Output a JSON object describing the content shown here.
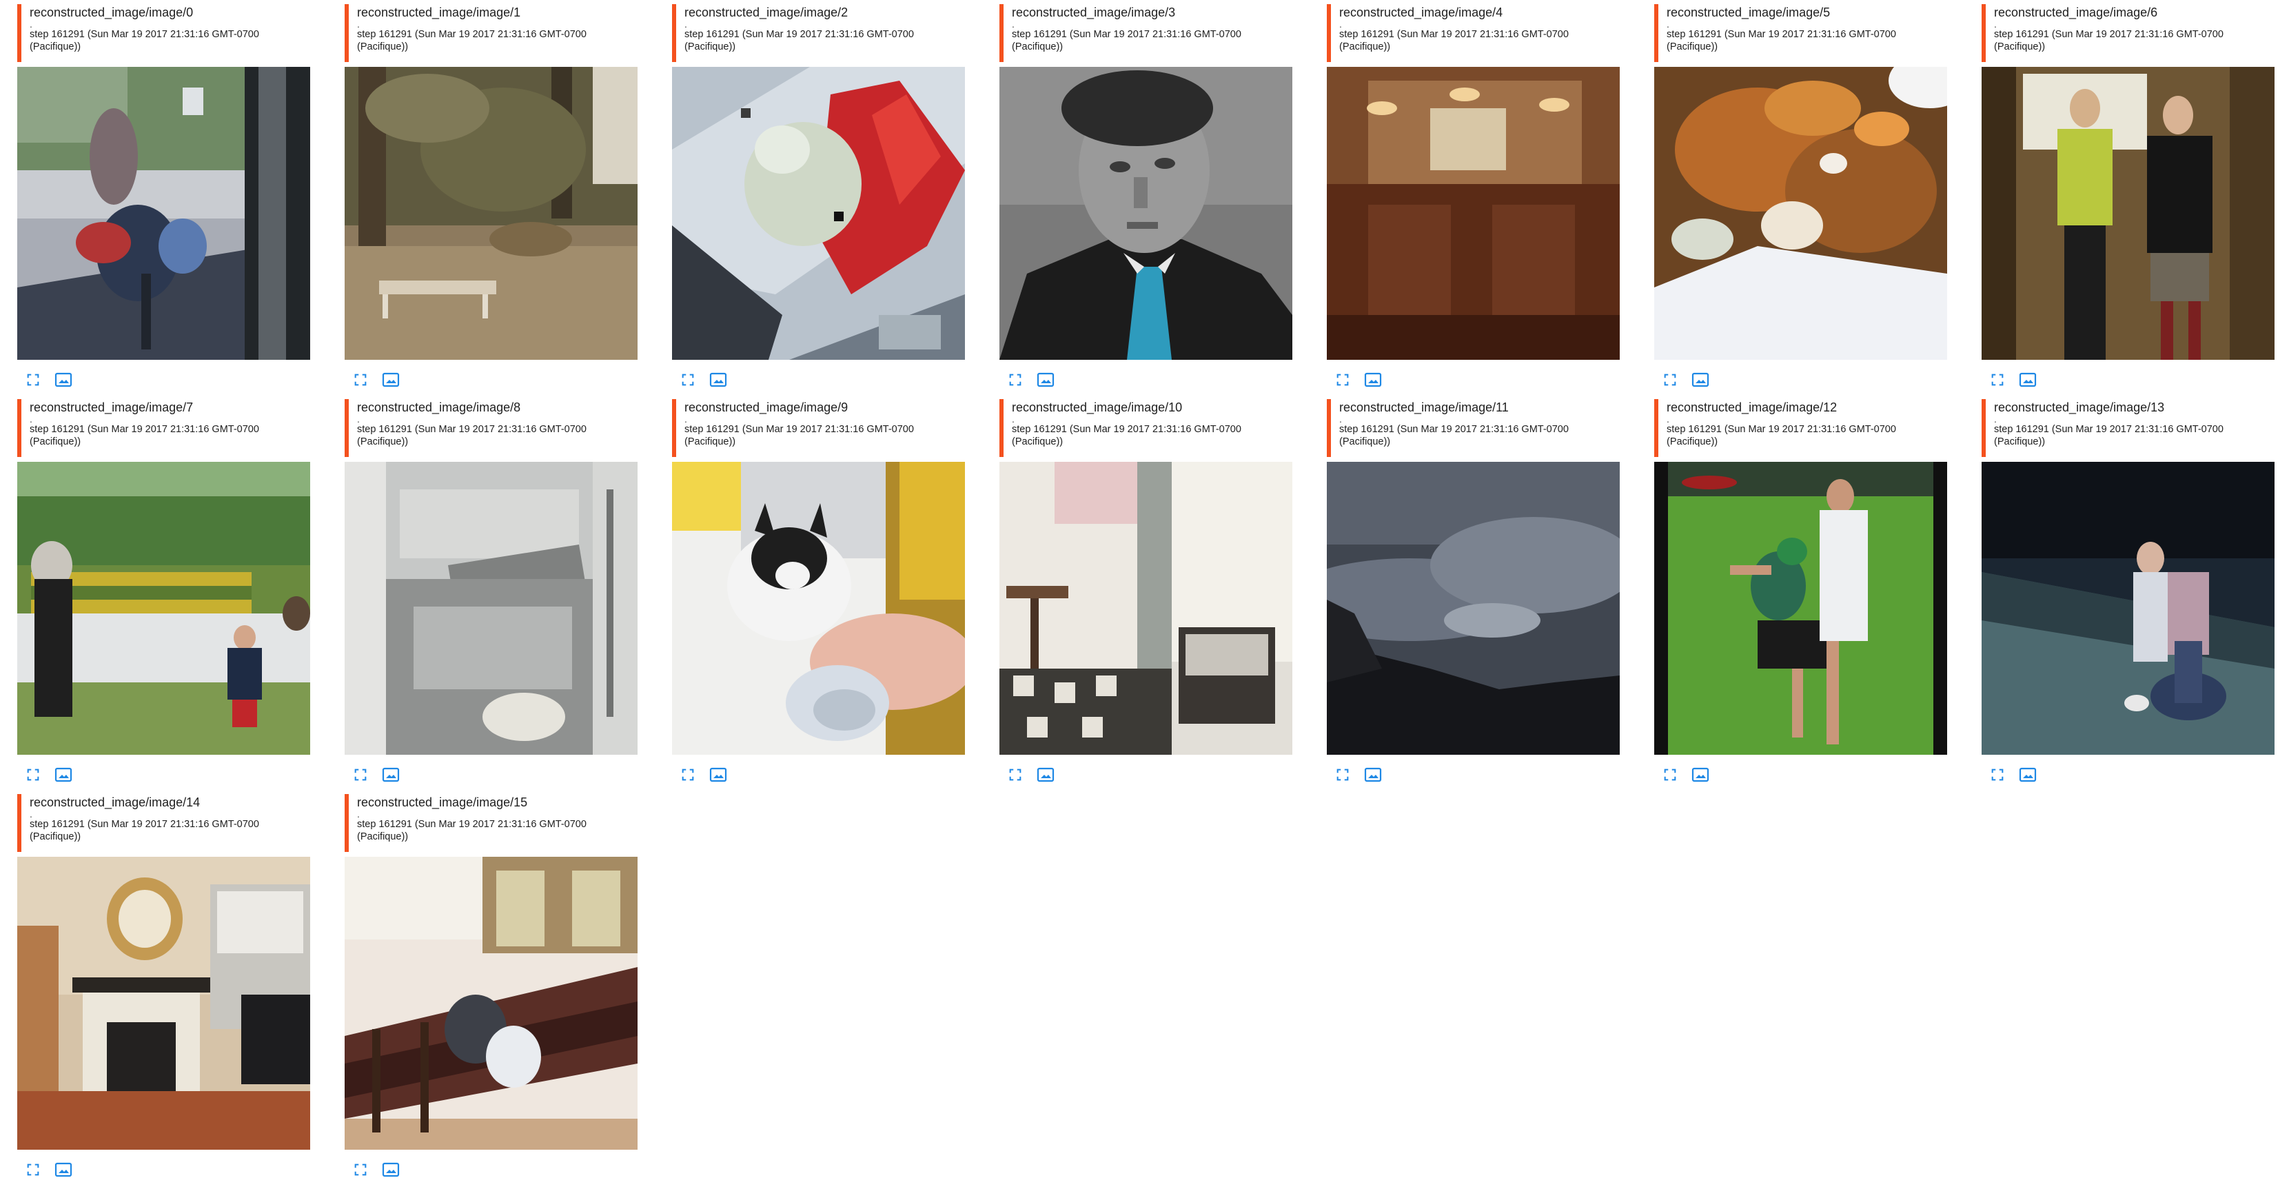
{
  "cards": [
    {
      "title": "reconstructed_image/image/0",
      "dot": ".",
      "step": "step 161291 (Sun Mar 19 2017 21:31:16 GMT-0700",
      "tz": "(Pacifique))",
      "scene": "bicycle"
    },
    {
      "title": "reconstructed_image/image/1",
      "dot": ".",
      "step": "step 161291 (Sun Mar 19 2017 21:31:16 GMT-0700",
      "tz": "(Pacifique))",
      "scene": "forest"
    },
    {
      "title": "reconstructed_image/image/2",
      "dot": ".",
      "step": "step 161291 (Sun Mar 19 2017 21:31:16 GMT-0700",
      "tz": "(Pacifique))",
      "scene": "bird"
    },
    {
      "title": "reconstructed_image/image/3",
      "dot": ".",
      "step": "step 161291 (Sun Mar 19 2017 21:31:16 GMT-0700",
      "tz": "(Pacifique))",
      "scene": "portrait"
    },
    {
      "title": "reconstructed_image/image/4",
      "dot": ".",
      "step": "step 161291 (Sun Mar 19 2017 21:31:16 GMT-0700",
      "tz": "(Pacifique))",
      "scene": "interior-wood"
    },
    {
      "title": "reconstructed_image/image/5",
      "dot": ".",
      "step": "step 161291 (Sun Mar 19 2017 21:31:16 GMT-0700",
      "tz": "(Pacifique))",
      "scene": "food"
    },
    {
      "title": "reconstructed_image/image/6",
      "dot": ".",
      "step": "step 161291 (Sun Mar 19 2017 21:31:16 GMT-0700",
      "tz": "(Pacifique))",
      "scene": "couple"
    },
    {
      "title": "reconstructed_image/image/7",
      "dot": ".",
      "step": "step 161291 (Sun Mar 19 2017 21:31:16 GMT-0700",
      "tz": "(Pacifique))",
      "scene": "park"
    },
    {
      "title": "reconstructed_image/image/8",
      "dot": ".",
      "step": "step 161291 (Sun Mar 19 2017 21:31:16 GMT-0700",
      "tz": "(Pacifique))",
      "scene": "bathroom"
    },
    {
      "title": "reconstructed_image/image/9",
      "dot": ".",
      "step": "step 161291 (Sun Mar 19 2017 21:31:16 GMT-0700",
      "tz": "(Pacifique))",
      "scene": "cat"
    },
    {
      "title": "reconstructed_image/image/10",
      "dot": ".",
      "step": "step 161291 (Sun Mar 19 2017 21:31:16 GMT-0700",
      "tz": "(Pacifique))",
      "scene": "room"
    },
    {
      "title": "reconstructed_image/image/11",
      "dot": ".",
      "step": "step 161291 (Sun Mar 19 2017 21:31:16 GMT-0700",
      "tz": "(Pacifique))",
      "scene": "storm"
    },
    {
      "title": "reconstructed_image/image/12",
      "dot": ".",
      "step": "step 161291 (Sun Mar 19 2017 21:31:16 GMT-0700",
      "tz": "(Pacifique))",
      "scene": "field"
    },
    {
      "title": "reconstructed_image/image/13",
      "dot": ".",
      "step": "step 161291 (Sun Mar 19 2017 21:31:16 GMT-0700",
      "tz": "(Pacifique))",
      "scene": "night"
    },
    {
      "title": "reconstructed_image/image/14",
      "dot": ".",
      "step": "step 161291 (Sun Mar 19 2017 21:31:16 GMT-0700",
      "tz": "(Pacifique))",
      "scene": "fireplace"
    },
    {
      "title": "reconstructed_image/image/15",
      "dot": ".",
      "step": "step 161291 (Sun Mar 19 2017 21:31:16 GMT-0700",
      "tz": "(Pacifique))",
      "scene": "bench"
    }
  ],
  "icons": {
    "fullscreen": "fullscreen-icon",
    "actual_size": "actual-size-icon"
  },
  "colors": {
    "accent_bar": "#f4511e",
    "icon_blue": "#1e88e5"
  }
}
